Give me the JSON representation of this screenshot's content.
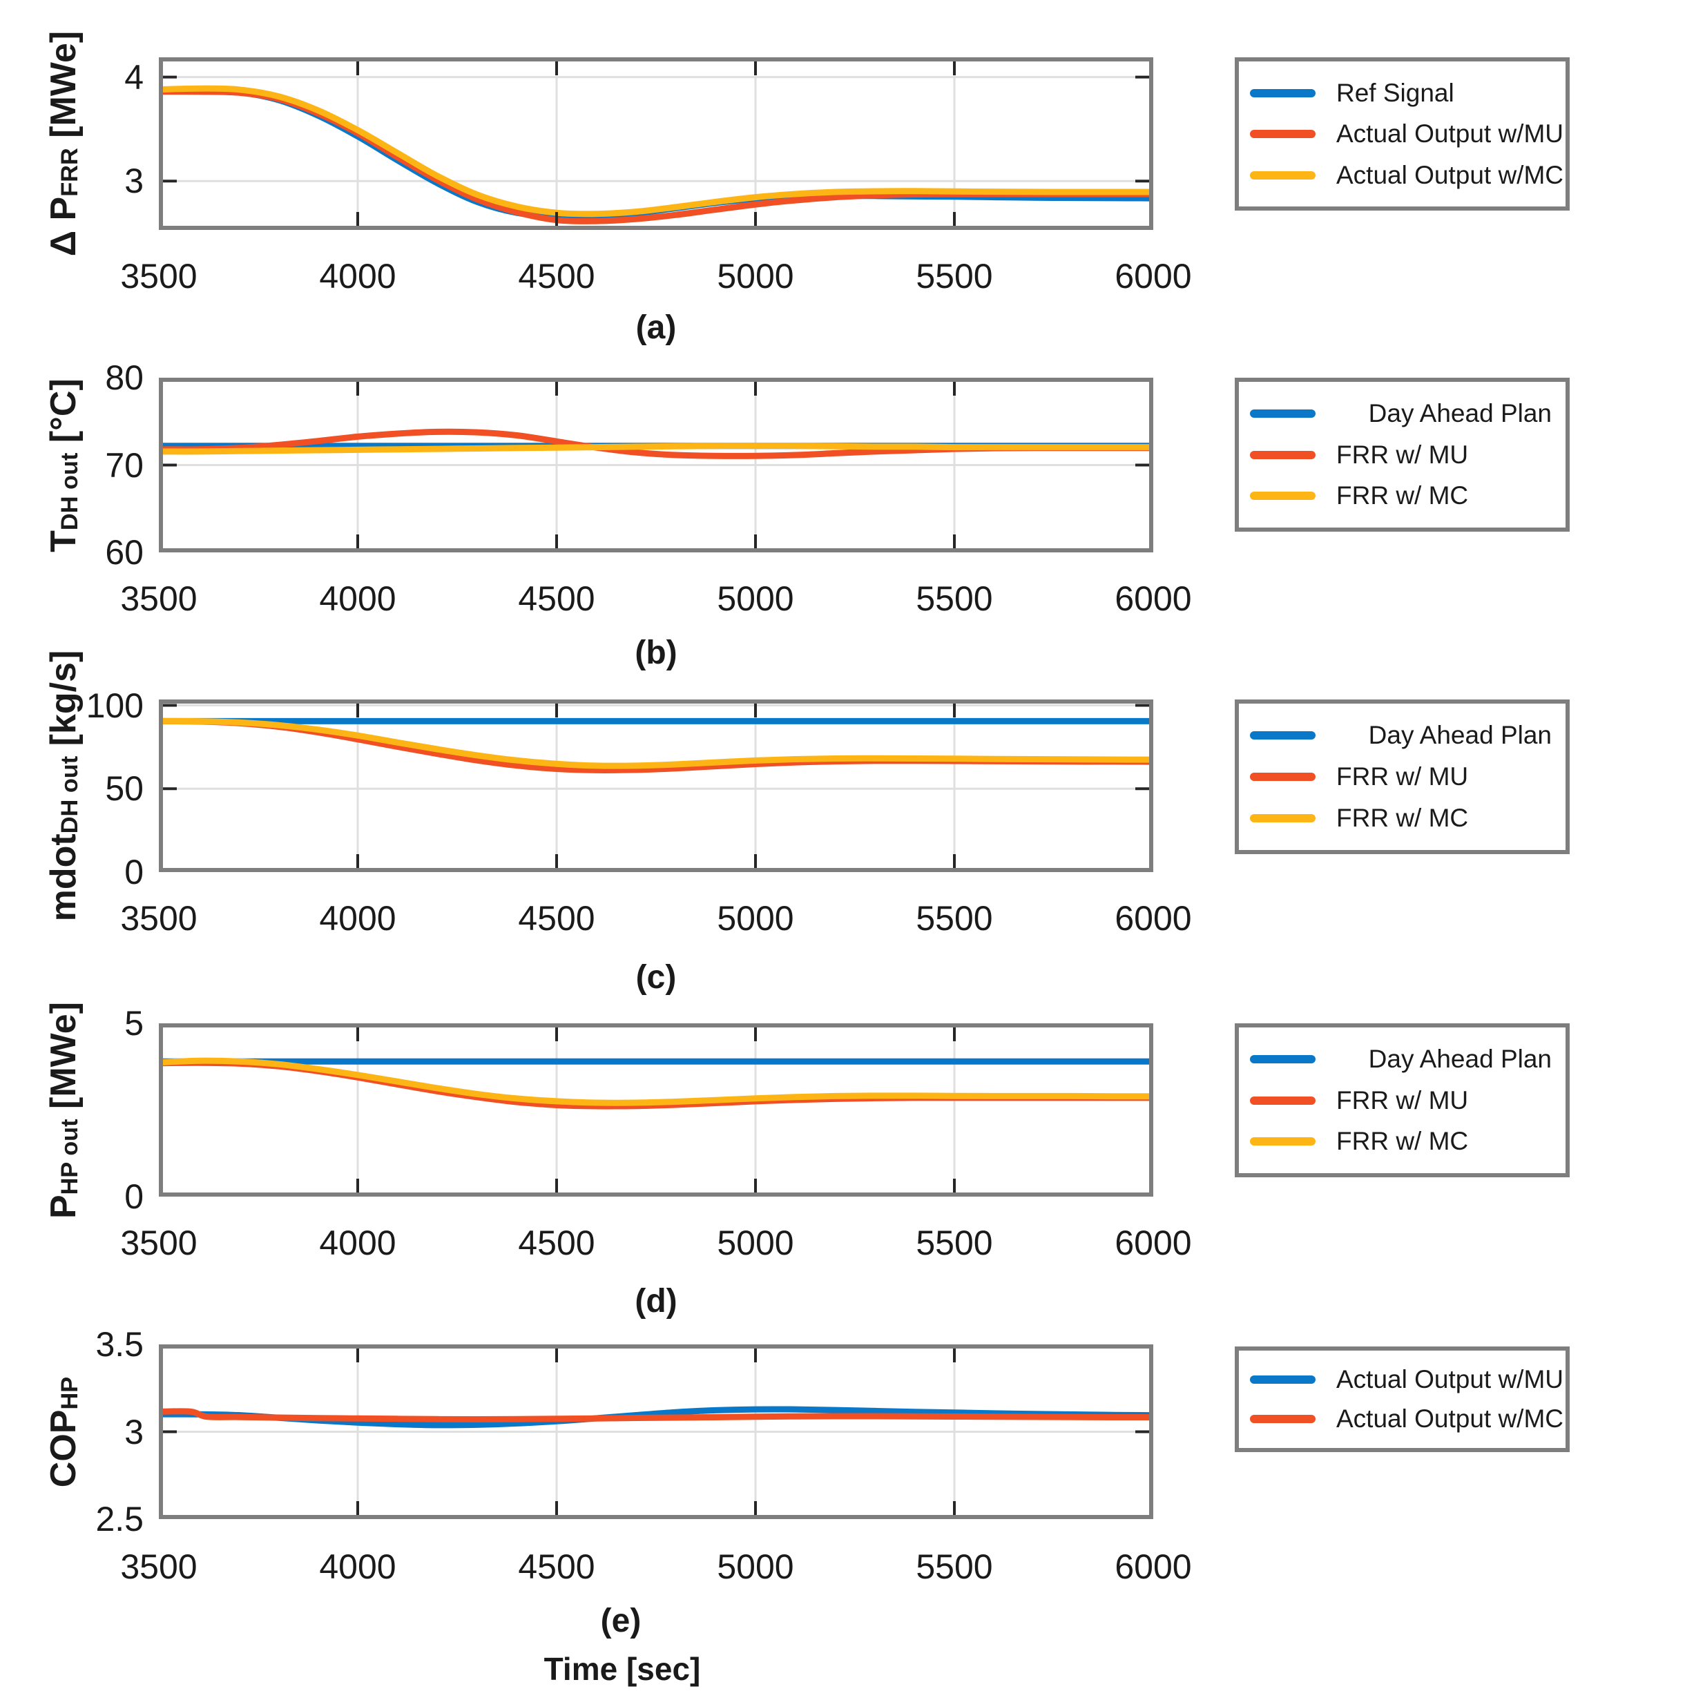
{
  "figure": {
    "xlabel": "Time [sec]",
    "colors": {
      "blue": "#0A78C8",
      "orange": "#F05023",
      "yellow": "#FDB515",
      "grid": "#DFDFDF",
      "border": "#7E7E7E",
      "tick": "#262626",
      "text": "#1A1A1A",
      "background": "#FFFFFF"
    }
  },
  "chart_data": [
    {
      "id": "a",
      "type": "line",
      "caption": "(a)",
      "ylabel_text": "Δ P_FRR [MWe]",
      "ylabel_segments": [
        {
          "t": "Δ P",
          "sub": false
        },
        {
          "t": "FRR",
          "sub": true
        },
        {
          "t": " [MWe]",
          "sub": false
        }
      ],
      "xlim": [
        3500,
        6000
      ],
      "ylim": [
        2.53,
        4.19
      ],
      "xticks": [
        3500,
        4000,
        4500,
        5000,
        5500,
        6000
      ],
      "xticklabels": [
        "3500",
        "4000",
        "4500",
        "5000",
        "5500",
        "6000"
      ],
      "yticks": [
        3,
        4
      ],
      "yticklabels": [
        "3",
        "4"
      ],
      "x": [
        3500,
        3600,
        3700,
        3800,
        3900,
        4000,
        4100,
        4200,
        4300,
        4400,
        4500,
        4600,
        4700,
        4800,
        4900,
        5000,
        5100,
        5200,
        5300,
        5400,
        5500,
        5600,
        5700,
        5800,
        5900,
        6000
      ],
      "series": [
        {
          "name": "Ref Signal",
          "color": "blue",
          "legend_align": "left",
          "y": [
            3.87,
            3.87,
            3.855,
            3.78,
            3.63,
            3.43,
            3.2,
            2.98,
            2.8,
            2.695,
            2.66,
            2.66,
            2.69,
            2.74,
            2.79,
            2.83,
            2.85,
            2.857,
            2.857,
            2.853,
            2.85,
            2.845,
            2.84,
            2.838,
            2.836,
            2.835
          ]
        },
        {
          "name": "Actual Output w/MU",
          "color": "orange",
          "legend_align": "left",
          "y": [
            3.86,
            3.86,
            3.85,
            3.79,
            3.65,
            3.46,
            3.23,
            3.01,
            2.825,
            2.7,
            2.625,
            2.615,
            2.635,
            2.675,
            2.725,
            2.775,
            2.815,
            2.845,
            2.862,
            2.872,
            2.875,
            2.875,
            2.875,
            2.875,
            2.875,
            2.875
          ]
        },
        {
          "name": "Actual Output w/MC",
          "color": "yellow",
          "legend_align": "left",
          "y": [
            3.88,
            3.89,
            3.88,
            3.815,
            3.68,
            3.49,
            3.27,
            3.05,
            2.87,
            2.755,
            2.695,
            2.685,
            2.705,
            2.75,
            2.8,
            2.845,
            2.875,
            2.895,
            2.902,
            2.903,
            2.9,
            2.898,
            2.896,
            2.895,
            2.895,
            2.895
          ]
        }
      ]
    },
    {
      "id": "b",
      "type": "line",
      "caption": "(b)",
      "ylabel_text": "T_DH out [°C]",
      "ylabel_segments": [
        {
          "t": "T",
          "sub": false
        },
        {
          "t": "DH out",
          "sub": true
        },
        {
          "t": " [°C]",
          "sub": false
        }
      ],
      "xlim": [
        3500,
        6000
      ],
      "ylim": [
        60,
        80
      ],
      "xticks": [
        3500,
        4000,
        4500,
        5000,
        5500,
        6000
      ],
      "xticklabels": [
        "3500",
        "4000",
        "4500",
        "5000",
        "5500",
        "6000"
      ],
      "yticks": [
        60,
        70,
        80
      ],
      "yticklabels": [
        "60",
        "70",
        "80"
      ],
      "x": [
        3500,
        3600,
        3700,
        3800,
        3900,
        4000,
        4100,
        4200,
        4300,
        4400,
        4500,
        4600,
        4700,
        4800,
        4900,
        5000,
        5100,
        5200,
        5300,
        5400,
        5500,
        5600,
        5700,
        5800,
        5900,
        6000
      ],
      "series": [
        {
          "name": "Day Ahead Plan",
          "color": "blue",
          "legend_align": "right",
          "y": [
            72.2,
            72.2,
            72.2,
            72.2,
            72.2,
            72.2,
            72.2,
            72.2,
            72.2,
            72.2,
            72.2,
            72.2,
            72.2,
            72.2,
            72.2,
            72.2,
            72.2,
            72.2,
            72.2,
            72.2,
            72.2,
            72.2,
            72.2,
            72.2,
            72.2,
            72.2
          ]
        },
        {
          "name": "FRR w/ MU",
          "color": "orange",
          "legend_align": "left",
          "y": [
            71.8,
            71.8,
            71.95,
            72.3,
            72.75,
            73.25,
            73.6,
            73.8,
            73.75,
            73.4,
            72.7,
            72.0,
            71.45,
            71.15,
            71.05,
            71.05,
            71.15,
            71.35,
            71.55,
            71.7,
            71.85,
            71.93,
            71.95,
            71.95,
            71.95,
            71.95
          ]
        },
        {
          "name": "FRR w/ MC",
          "color": "yellow",
          "legend_align": "left",
          "y": [
            71.55,
            71.55,
            71.6,
            71.65,
            71.7,
            71.75,
            71.8,
            71.85,
            71.9,
            71.95,
            72.0,
            72.05,
            72.1,
            72.15,
            72.2,
            72.2,
            72.2,
            72.15,
            72.1,
            72.1,
            72.05,
            72.05,
            72.05,
            72.05,
            72.05,
            72.05
          ]
        }
      ]
    },
    {
      "id": "c",
      "type": "line",
      "caption": "(c)",
      "ylabel_text": "mdot_DH out [kg/s]",
      "ylabel_segments": [
        {
          "t": "mdot",
          "sub": false
        },
        {
          "t": "DH out",
          "sub": true
        },
        {
          "t": " [kg/s]",
          "sub": false
        }
      ],
      "xlim": [
        3500,
        6000
      ],
      "ylim": [
        0,
        103.5
      ],
      "xticks": [
        3500,
        4000,
        4500,
        5000,
        5500,
        6000
      ],
      "xticklabels": [
        "3500",
        "4000",
        "4500",
        "5000",
        "5500",
        "6000"
      ],
      "yticks": [
        0,
        50,
        100
      ],
      "yticklabels": [
        "0",
        "50",
        "100"
      ],
      "x": [
        3500,
        3600,
        3700,
        3800,
        3900,
        4000,
        4100,
        4200,
        4300,
        4400,
        4500,
        4600,
        4700,
        4800,
        4900,
        5000,
        5100,
        5200,
        5300,
        5400,
        5500,
        5600,
        5700,
        5800,
        5900,
        6000
      ],
      "series": [
        {
          "name": "Day Ahead Plan",
          "color": "blue",
          "legend_align": "right",
          "y": [
            90.5,
            90.5,
            90.5,
            90.5,
            90.5,
            90.5,
            90.5,
            90.5,
            90.5,
            90.5,
            90.5,
            90.5,
            90.5,
            90.5,
            90.5,
            90.5,
            90.5,
            90.5,
            90.5,
            90.5,
            90.5,
            90.5,
            90.5,
            90.5,
            90.5,
            90.5
          ]
        },
        {
          "name": "FRR w/ MU",
          "color": "orange",
          "legend_align": "left",
          "y": [
            90.5,
            90.3,
            89.3,
            87.2,
            83.8,
            79.6,
            75.2,
            70.9,
            67.0,
            63.9,
            61.9,
            61.1,
            61.3,
            62.2,
            63.5,
            64.8,
            65.8,
            66.4,
            66.7,
            66.7,
            66.6,
            66.5,
            66.4,
            66.3,
            66.3,
            66.2
          ]
        },
        {
          "name": "FRR w/ MC",
          "color": "yellow",
          "legend_align": "left",
          "y": [
            90.5,
            90.4,
            89.7,
            88.1,
            85.4,
            81.9,
            77.7,
            73.7,
            70.0,
            67.0,
            64.9,
            63.8,
            63.8,
            64.6,
            65.8,
            66.9,
            67.7,
            68.1,
            68.2,
            68.1,
            68.0,
            67.8,
            67.7,
            67.6,
            67.5,
            67.4
          ]
        }
      ]
    },
    {
      "id": "d",
      "type": "line",
      "caption": "(d)",
      "ylabel_text": "P_HP out [MWe]",
      "ylabel_segments": [
        {
          "t": "P",
          "sub": false
        },
        {
          "t": "HP out",
          "sub": true
        },
        {
          "t": " [MWe]",
          "sub": false
        }
      ],
      "xlim": [
        3500,
        6000
      ],
      "ylim": [
        0,
        5
      ],
      "xticks": [
        3500,
        4000,
        4500,
        5000,
        5500,
        6000
      ],
      "xticklabels": [
        "3500",
        "4000",
        "4500",
        "5000",
        "5500",
        "6000"
      ],
      "yticks": [
        0,
        5
      ],
      "yticklabels": [
        "0",
        "5"
      ],
      "x": [
        3500,
        3600,
        3700,
        3800,
        3900,
        4000,
        4100,
        4200,
        4300,
        4400,
        4500,
        4600,
        4700,
        4800,
        4900,
        5000,
        5100,
        5200,
        5300,
        5400,
        5500,
        5600,
        5700,
        5800,
        5900,
        6000
      ],
      "series": [
        {
          "name": "Day Ahead Plan",
          "color": "blue",
          "legend_align": "right",
          "y": [
            3.9,
            3.9,
            3.9,
            3.9,
            3.9,
            3.9,
            3.9,
            3.9,
            3.9,
            3.9,
            3.9,
            3.9,
            3.9,
            3.9,
            3.9,
            3.9,
            3.9,
            3.9,
            3.9,
            3.9,
            3.9,
            3.9,
            3.9,
            3.9,
            3.9,
            3.9
          ]
        },
        {
          "name": "FRR w/ MU",
          "color": "orange",
          "legend_align": "left",
          "y": [
            3.85,
            3.86,
            3.84,
            3.76,
            3.62,
            3.44,
            3.24,
            3.04,
            2.87,
            2.73,
            2.64,
            2.61,
            2.615,
            2.65,
            2.7,
            2.75,
            2.79,
            2.82,
            2.84,
            2.85,
            2.85,
            2.85,
            2.85,
            2.85,
            2.85,
            2.85
          ]
        },
        {
          "name": "FRR w/ MC",
          "color": "yellow",
          "legend_align": "left",
          "y": [
            3.87,
            3.92,
            3.9,
            3.82,
            3.68,
            3.51,
            3.32,
            3.13,
            2.96,
            2.83,
            2.75,
            2.71,
            2.71,
            2.74,
            2.785,
            2.835,
            2.875,
            2.9,
            2.91,
            2.91,
            2.905,
            2.9,
            2.9,
            2.9,
            2.895,
            2.895
          ]
        }
      ]
    },
    {
      "id": "e",
      "type": "line",
      "caption": "(e)",
      "ylabel_text": "COP_HP",
      "ylabel_segments": [
        {
          "t": "COP",
          "sub": false
        },
        {
          "t": "HP",
          "sub": true
        }
      ],
      "xlim": [
        3500,
        6000
      ],
      "ylim": [
        2.5,
        3.5
      ],
      "xticks": [
        3500,
        4000,
        4500,
        5000,
        5500,
        6000
      ],
      "xticklabels": [
        "3500",
        "4000",
        "4500",
        "5000",
        "5500",
        "6000"
      ],
      "yticks": [
        2.5,
        3,
        3.5
      ],
      "yticklabels": [
        "2.5",
        "3",
        "3.5"
      ],
      "x": [
        3500,
        3600,
        3700,
        3800,
        3900,
        4000,
        4100,
        4200,
        4300,
        4400,
        4500,
        4600,
        4700,
        4800,
        4900,
        5000,
        5100,
        5200,
        5300,
        5400,
        5500,
        5600,
        5700,
        5800,
        5900,
        6000
      ],
      "series": [
        {
          "name": "Actual Output w/MU",
          "color": "blue",
          "legend_align": "left",
          "y": [
            3.1,
            3.1,
            3.095,
            3.08,
            3.065,
            3.052,
            3.043,
            3.038,
            3.04,
            3.048,
            3.06,
            3.077,
            3.095,
            3.112,
            3.123,
            3.128,
            3.128,
            3.124,
            3.119,
            3.114,
            3.11,
            3.105,
            3.102,
            3.099,
            3.096,
            3.094
          ]
        },
        {
          "name": "Actual Output w/MC",
          "color": "orange",
          "legend_align": "left",
          "x": [
            3500,
            3580,
            3620,
            3700,
            3800,
            3900,
            4000,
            4100,
            4200,
            4300,
            4400,
            4500,
            4600,
            4700,
            4800,
            4900,
            5000,
            5100,
            5200,
            5300,
            5400,
            5500,
            5600,
            5700,
            5800,
            5900,
            6000
          ],
          "y": [
            3.115,
            3.115,
            3.086,
            3.084,
            3.081,
            3.078,
            3.076,
            3.074,
            3.072,
            3.071,
            3.072,
            3.074,
            3.076,
            3.079,
            3.081,
            3.083,
            3.086,
            3.088,
            3.089,
            3.089,
            3.088,
            3.087,
            3.086,
            3.085,
            3.084,
            3.083,
            3.083
          ]
        }
      ]
    }
  ]
}
